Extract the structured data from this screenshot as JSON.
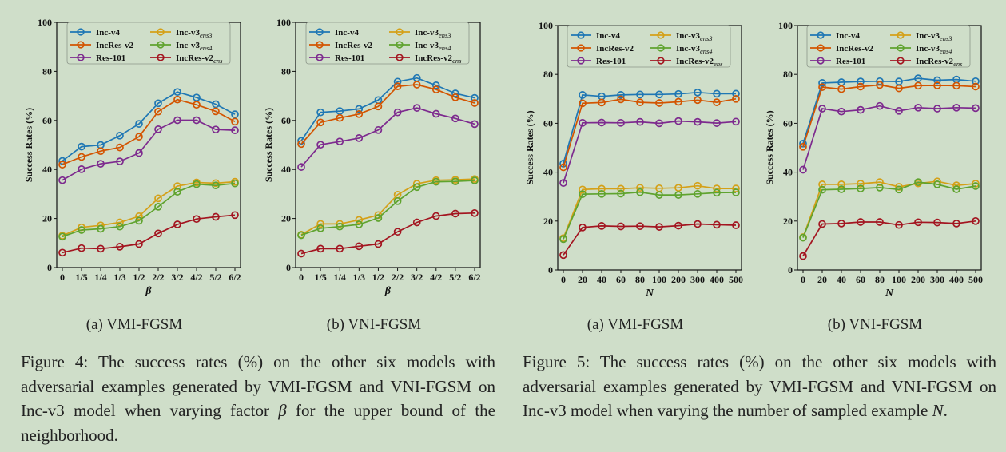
{
  "chart_data": [
    {
      "type": "line",
      "id": "fig4a",
      "ylabel": "Success Rates (%)",
      "xlabel": "β",
      "ylim": [
        0,
        100
      ],
      "yticks": [
        0,
        20,
        40,
        60,
        80,
        100
      ],
      "categories": [
        "0",
        "1/5",
        "1/4",
        "1/3",
        "1/2",
        "2/2",
        "3/2",
        "4/2",
        "5/2",
        "6/2"
      ],
      "grid": false,
      "legend": "top-left",
      "series": [
        {
          "name": "Inc-v4",
          "color": "#1f77b4",
          "values": [
            43.5,
            49.3,
            50.0,
            53.8,
            58.6,
            67.0,
            71.6,
            69.3,
            66.6,
            62.5
          ]
        },
        {
          "name": "IncRes-v2",
          "color": "#d35400",
          "values": [
            42.0,
            45.1,
            47.5,
            49.0,
            53.4,
            63.6,
            68.5,
            66.4,
            63.7,
            59.5
          ]
        },
        {
          "name": "Res-101",
          "color": "#7d2a8e",
          "values": [
            35.6,
            40.1,
            42.3,
            43.3,
            46.7,
            56.4,
            60.1,
            60.1,
            56.3,
            56.0
          ]
        },
        {
          "name": "Inc-v3",
          "sub": "ens3",
          "color": "#d4a017",
          "values": [
            13.0,
            16.4,
            17.2,
            18.4,
            20.9,
            28.2,
            33.2,
            34.7,
            34.4,
            35.0
          ]
        },
        {
          "name": "Inc-v3",
          "sub": "ens4",
          "color": "#5fa32e",
          "values": [
            12.6,
            15.3,
            15.8,
            16.7,
            19.1,
            24.8,
            30.9,
            34.0,
            33.5,
            34.3
          ]
        },
        {
          "name": "IncRes-v2",
          "sub": "ens",
          "color": "#a31520",
          "values": [
            6.1,
            7.9,
            7.7,
            8.5,
            9.6,
            13.9,
            17.6,
            19.8,
            20.7,
            21.4
          ]
        }
      ]
    },
    {
      "type": "line",
      "id": "fig4b",
      "ylabel": "Success Rates (%)",
      "xlabel": "β",
      "ylim": [
        0,
        100
      ],
      "yticks": [
        0,
        20,
        40,
        60,
        80,
        100
      ],
      "categories": [
        "0",
        "1/5",
        "1/4",
        "1/3",
        "1/2",
        "2/2",
        "3/2",
        "4/2",
        "5/2",
        "6/2"
      ],
      "grid": false,
      "legend": "top-left",
      "series": [
        {
          "name": "Inc-v4",
          "color": "#1f77b4",
          "values": [
            51.7,
            63.3,
            63.8,
            64.7,
            68.3,
            75.8,
            77.3,
            74.3,
            71.0,
            69.2
          ]
        },
        {
          "name": "IncRes-v2",
          "color": "#d35400",
          "values": [
            50.4,
            59.2,
            61.0,
            62.6,
            65.7,
            73.9,
            74.6,
            72.6,
            69.4,
            67.1
          ]
        },
        {
          "name": "Res-101",
          "color": "#7d2a8e",
          "values": [
            41.0,
            50.1,
            51.4,
            52.8,
            56.1,
            63.3,
            65.1,
            62.7,
            60.8,
            58.5
          ]
        },
        {
          "name": "Inc-v3",
          "sub": "ens3",
          "color": "#d4a017",
          "values": [
            13.4,
            17.8,
            17.8,
            19.4,
            21.4,
            29.7,
            34.2,
            35.6,
            35.8,
            36.1
          ]
        },
        {
          "name": "Inc-v3",
          "sub": "ens4",
          "color": "#5fa32e",
          "values": [
            13.2,
            16.0,
            16.7,
            17.6,
            20.2,
            27.1,
            32.8,
            35.0,
            35.1,
            35.5
          ]
        },
        {
          "name": "IncRes-v2",
          "sub": "ens",
          "color": "#a31520",
          "values": [
            5.7,
            7.7,
            7.7,
            8.7,
            9.6,
            14.6,
            18.4,
            21.0,
            22.0,
            22.2
          ]
        }
      ]
    },
    {
      "type": "line",
      "id": "fig5a",
      "ylabel": "Success Rates (%)",
      "xlabel": "N",
      "ylim": [
        0,
        100
      ],
      "yticks": [
        0,
        20,
        40,
        60,
        80,
        100
      ],
      "categories": [
        "0",
        "20",
        "40",
        "60",
        "80",
        "100",
        "200",
        "300",
        "400",
        "500"
      ],
      "grid": false,
      "legend": "top",
      "series": [
        {
          "name": "Inc-v4",
          "color": "#1f77b4",
          "values": [
            43.5,
            71.6,
            71.0,
            71.6,
            71.8,
            71.8,
            72.0,
            72.6,
            72.1,
            72.1
          ]
        },
        {
          "name": "IncRes-v2",
          "color": "#d35400",
          "values": [
            42.0,
            68.2,
            68.5,
            69.8,
            68.6,
            68.3,
            68.8,
            69.5,
            68.6,
            70.0
          ]
        },
        {
          "name": "Res-101",
          "color": "#7d2a8e",
          "values": [
            35.6,
            60.2,
            60.3,
            60.2,
            60.6,
            60.0,
            60.9,
            60.6,
            60.1,
            60.7
          ]
        },
        {
          "name": "Inc-v3",
          "sub": "ens3",
          "color": "#d4a017",
          "values": [
            13.0,
            32.9,
            33.2,
            33.2,
            33.6,
            33.4,
            33.6,
            34.4,
            33.3,
            33.3
          ]
        },
        {
          "name": "Inc-v3",
          "sub": "ens4",
          "color": "#5fa32e",
          "values": [
            12.6,
            31.0,
            31.1,
            31.2,
            31.8,
            30.7,
            30.7,
            31.1,
            31.6,
            31.7
          ]
        },
        {
          "name": "IncRes-v2",
          "sub": "ens",
          "color": "#a31520",
          "values": [
            6.1,
            17.4,
            18.0,
            17.8,
            17.9,
            17.6,
            18.1,
            18.8,
            18.5,
            18.3
          ]
        }
      ]
    },
    {
      "type": "line",
      "id": "fig5b",
      "ylabel": "Success Rates (%)",
      "xlabel": "N",
      "ylim": [
        0,
        100
      ],
      "yticks": [
        0,
        20,
        40,
        60,
        80,
        100
      ],
      "categories": [
        "0",
        "20",
        "40",
        "60",
        "80",
        "100",
        "200",
        "300",
        "400",
        "500"
      ],
      "grid": false,
      "legend": "top",
      "series": [
        {
          "name": "Inc-v4",
          "color": "#1f77b4",
          "values": [
            51.7,
            76.5,
            76.8,
            77.1,
            77.2,
            77.1,
            78.4,
            77.6,
            77.9,
            77.2
          ]
        },
        {
          "name": "IncRes-v2",
          "color": "#d35400",
          "values": [
            50.4,
            74.8,
            74.0,
            75.0,
            75.7,
            74.3,
            75.4,
            75.5,
            75.4,
            75.0
          ]
        },
        {
          "name": "Res-101",
          "color": "#7d2a8e",
          "values": [
            41.0,
            66.0,
            64.8,
            65.5,
            67.1,
            65.1,
            66.4,
            66.0,
            66.4,
            66.2
          ]
        },
        {
          "name": "Inc-v3",
          "sub": "ens3",
          "color": "#d4a017",
          "values": [
            13.4,
            35.0,
            35.0,
            35.3,
            35.9,
            34.0,
            35.4,
            36.2,
            34.6,
            35.3
          ]
        },
        {
          "name": "Inc-v3",
          "sub": "ens4",
          "color": "#5fa32e",
          "values": [
            13.2,
            32.8,
            33.0,
            33.3,
            33.7,
            32.9,
            35.9,
            35.0,
            33.0,
            34.3
          ]
        },
        {
          "name": "IncRes-v2",
          "sub": "ens",
          "color": "#a31520",
          "values": [
            5.7,
            18.8,
            19.0,
            19.6,
            19.6,
            18.4,
            19.5,
            19.4,
            19.0,
            20.0
          ]
        }
      ]
    }
  ],
  "subcaptions": {
    "fig4a": "(a) VMI-FGSM",
    "fig4b": "(b) VNI-FGSM",
    "fig5a": "(a) VMI-FGSM",
    "fig5b": "(b) VNI-FGSM"
  },
  "captions": {
    "fig4": {
      "before": "Figure 4: The success rates (%) on the other six models with adversarial examples generated by VMI-FGSM and VNI-FGSM on Inc-v3 model when varying factor ",
      "var": "β",
      "after": " for the upper bound of the neighborhood."
    },
    "fig5": {
      "before": "Figure 5: The success rates (%) on the other six models with adversarial examples generated by VMI-FGSM and VNI-FGSM on Inc-v3 model when varying the number of sampled example ",
      "var": "N",
      "after": "."
    }
  }
}
